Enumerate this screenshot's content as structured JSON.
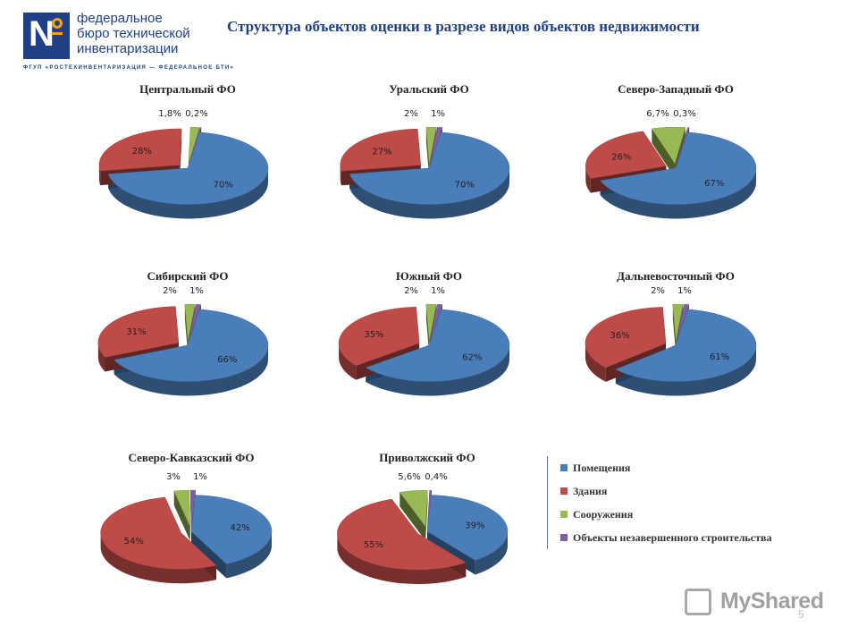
{
  "logo": {
    "lines": [
      "федеральное",
      "бюро технической",
      "инвентаризации"
    ],
    "subtitle": "ФГУП «РОСТЕХИНВЕНТАРИЗАЦИЯ — ФЕДЕРАЛЬНОЕ БТИ»"
  },
  "title": "Структура объектов оценки в разрезе видов объектов недвижимости",
  "colors": {
    "Помещения": "#4a7ebb",
    "Здания": "#be4b48",
    "Сооружения": "#98b954",
    "Объекты незавершенного строительства": "#7d60a0"
  },
  "chart_data": [
    {
      "type": "pie",
      "title": "Центральный ФО",
      "categories": [
        "Помещения",
        "Здания",
        "Сооружения",
        "Объекты незавершенного строительства"
      ],
      "values": [
        70,
        28,
        1.8,
        0.2
      ],
      "labels": [
        "70%",
        "28%",
        "1,8%",
        "0,2%"
      ]
    },
    {
      "type": "pie",
      "title": "Уральский ФО",
      "categories": [
        "Помещения",
        "Здания",
        "Сооружения",
        "Объекты незавершенного строительства"
      ],
      "values": [
        70,
        27,
        2,
        1
      ],
      "labels": [
        "70%",
        "27%",
        "2%",
        "1%"
      ]
    },
    {
      "type": "pie",
      "title": "Северо-Западный ФО",
      "categories": [
        "Помещения",
        "Здания",
        "Сооружения",
        "Объекты незавершенного строительства"
      ],
      "values": [
        67,
        26,
        6.7,
        0.3
      ],
      "labels": [
        "67%",
        "26%",
        "6,7%",
        "0,3%"
      ]
    },
    {
      "type": "pie",
      "title": "Сибирский ФО",
      "categories": [
        "Помещения",
        "Здания",
        "Сооружения",
        "Объекты незавершенного строительства"
      ],
      "values": [
        66,
        31,
        2,
        1
      ],
      "labels": [
        "66%",
        "31%",
        "2%",
        "1%"
      ]
    },
    {
      "type": "pie",
      "title": "Южный ФО",
      "categories": [
        "Помещения",
        "Здания",
        "Сооружения",
        "Объекты незавершенного строительства"
      ],
      "values": [
        62,
        35,
        2,
        1
      ],
      "labels": [
        "62%",
        "35%",
        "2%",
        "1%"
      ]
    },
    {
      "type": "pie",
      "title": "Дальневосточный ФО",
      "categories": [
        "Помещения",
        "Здания",
        "Сооружения",
        "Объекты незавершенного строительства"
      ],
      "values": [
        61,
        36,
        2,
        1
      ],
      "labels": [
        "61%",
        "36%",
        "2%",
        "1%"
      ]
    },
    {
      "type": "pie",
      "title": "Северо-Кавказский ФО",
      "categories": [
        "Помещения",
        "Здания",
        "Сооружения",
        "Объекты незавершенного строительства"
      ],
      "values": [
        42,
        54,
        3,
        1
      ],
      "labels": [
        "42%",
        "54%",
        "3%",
        "1%"
      ]
    },
    {
      "type": "pie",
      "title": "Приволжский ФО",
      "categories": [
        "Помещения",
        "Здания",
        "Сооружения",
        "Объекты незавершенного строительства"
      ],
      "values": [
        39,
        55,
        5.6,
        0.4
      ],
      "labels": [
        "39%",
        "55%",
        "5,6%",
        "0,4%"
      ]
    }
  ],
  "legend": [
    "Помещения",
    "Здания",
    "Сооружения",
    "Объекты незавершенного строительства"
  ],
  "watermark": "MyShared",
  "page_number": "5"
}
